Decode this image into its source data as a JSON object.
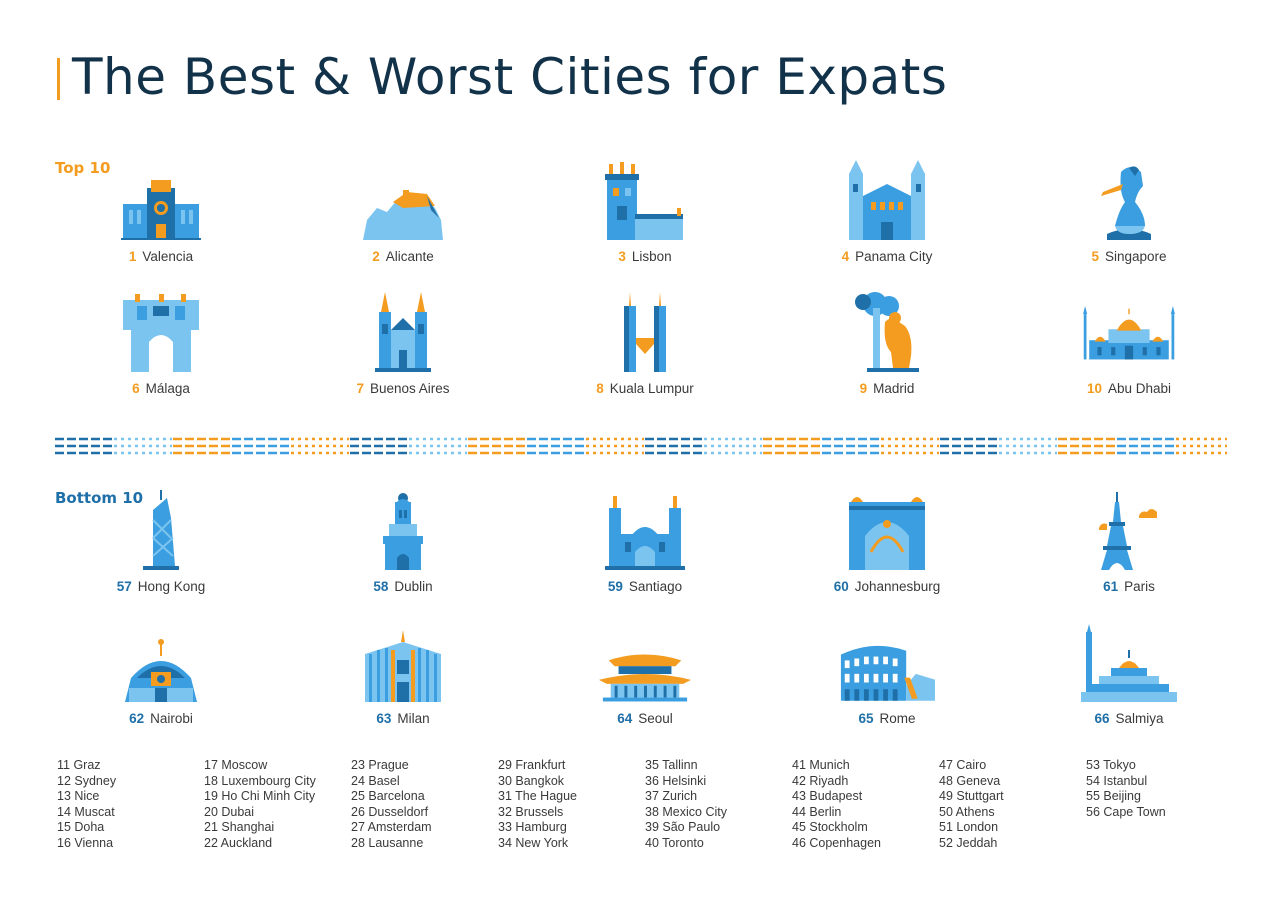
{
  "title": "The Best & Worst Cities for Expats",
  "colors": {
    "accent": "#f39c1f",
    "title": "#12324a",
    "blue_dark": "#1f6fa8",
    "blue_mid": "#3a9ee0",
    "blue_light": "#7cc4f0"
  },
  "top": {
    "label": "Top 10",
    "cities": [
      {
        "rank": "1",
        "name": "Valencia",
        "icon": "valencia-cathedral-icon"
      },
      {
        "rank": "2",
        "name": "Alicante",
        "icon": "alicante-castle-icon"
      },
      {
        "rank": "3",
        "name": "Lisbon",
        "icon": "belem-tower-icon"
      },
      {
        "rank": "4",
        "name": "Panama City",
        "icon": "panama-cathedral-icon"
      },
      {
        "rank": "5",
        "name": "Singapore",
        "icon": "merlion-icon"
      },
      {
        "rank": "6",
        "name": "Málaga",
        "icon": "malaga-gate-icon"
      },
      {
        "rank": "7",
        "name": "Buenos Aires",
        "icon": "buenos-aires-cathedral-icon"
      },
      {
        "rank": "8",
        "name": "Kuala Lumpur",
        "icon": "petronas-towers-icon"
      },
      {
        "rank": "9",
        "name": "Madrid",
        "icon": "bear-and-strawberry-tree-icon"
      },
      {
        "rank": "10",
        "name": "Abu Dhabi",
        "icon": "grand-mosque-icon"
      }
    ]
  },
  "bottom": {
    "label": "Bottom 10",
    "cities": [
      {
        "rank": "57",
        "name": "Hong Kong",
        "icon": "bank-of-china-tower-icon"
      },
      {
        "rank": "58",
        "name": "Dublin",
        "icon": "dublin-church-icon"
      },
      {
        "rank": "59",
        "name": "Santiago",
        "icon": "santiago-cathedral-icon"
      },
      {
        "rank": "60",
        "name": "Johannesburg",
        "icon": "johannesburg-hall-icon"
      },
      {
        "rank": "61",
        "name": "Paris",
        "icon": "eiffel-tower-icon"
      },
      {
        "rank": "62",
        "name": "Nairobi",
        "icon": "kicc-icon"
      },
      {
        "rank": "63",
        "name": "Milan",
        "icon": "milan-cathedral-icon"
      },
      {
        "rank": "64",
        "name": "Seoul",
        "icon": "seoul-pagoda-icon"
      },
      {
        "rank": "65",
        "name": "Rome",
        "icon": "colosseum-icon"
      },
      {
        "rank": "66",
        "name": "Salmiya",
        "icon": "salmiya-mosque-icon"
      }
    ]
  },
  "ranking_list": [
    [
      "11  Graz",
      "12  Sydney",
      "13  Nice",
      "14  Muscat",
      "15  Doha",
      "16  Vienna"
    ],
    [
      "17  Moscow",
      "18  Luxembourg City",
      "19  Ho Chi Minh City",
      "20  Dubai",
      "21  Shanghai",
      "22  Auckland"
    ],
    [
      "23  Prague",
      "24  Basel",
      "25  Barcelona",
      "26  Dusseldorf",
      "27  Amsterdam",
      "28  Lausanne"
    ],
    [
      "29  Frankfurt",
      "30  Bangkok",
      "31  The Hague",
      "32  Brussels",
      "33  Hamburg",
      "34  New York"
    ],
    [
      "35  Tallinn",
      "36  Helsinki",
      "37  Zurich",
      "38  Mexico City",
      "39  São Paulo",
      "40  Toronto"
    ],
    [
      "41  Munich",
      "42  Riyadh",
      "43  Budapest",
      "44  Berlin",
      "45  Stockholm",
      "46  Copenhagen"
    ],
    [
      "47  Cairo",
      "48  Geneva",
      "49  Stuttgart",
      "50  Athens",
      "51  London",
      "52  Jeddah"
    ],
    [
      "53  Tokyo",
      "54  Istanbul",
      "55  Beijing",
      "56  Cape Town"
    ]
  ]
}
